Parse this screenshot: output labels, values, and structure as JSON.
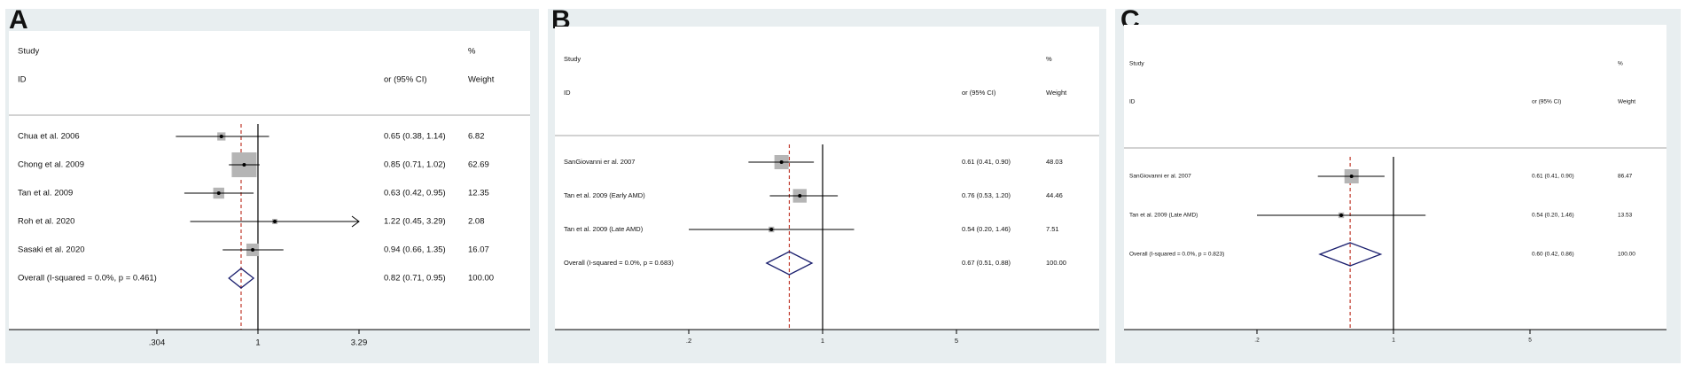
{
  "chart_data": [
    {
      "type": "forest",
      "panel_label": "A",
      "header": {
        "study": "Study",
        "id": "ID",
        "effect": "or (95% CI)",
        "pct": "%",
        "weight": "Weight"
      },
      "reference_line": 1,
      "overall_effect": 0.82,
      "x_ticks": [
        {
          "value": 0.304,
          "label": ".304"
        },
        {
          "value": 1,
          "label": "1"
        },
        {
          "value": 3.29,
          "label": "3.29"
        }
      ],
      "studies": [
        {
          "label": "Chua et al. 2006",
          "or": 0.65,
          "lo": 0.38,
          "hi": 1.14,
          "ci_text": "0.65 (0.38, 1.14)",
          "weight": 6.82,
          "weight_text": "6.82"
        },
        {
          "label": "Chong et al. 2009",
          "or": 0.85,
          "lo": 0.71,
          "hi": 1.02,
          "ci_text": "0.85 (0.71, 1.02)",
          "weight": 62.69,
          "weight_text": "62.69"
        },
        {
          "label": "Tan et al. 2009",
          "or": 0.63,
          "lo": 0.42,
          "hi": 0.95,
          "ci_text": "0.63 (0.42, 0.95)",
          "weight": 12.35,
          "weight_text": "12.35"
        },
        {
          "label": "Roh et al. 2020",
          "or": 1.22,
          "lo": 0.45,
          "hi": 3.29,
          "ci_text": "1.22 (0.45, 3.29)",
          "weight": 2.08,
          "weight_text": "2.08",
          "arrow_right": true
        },
        {
          "label": "Sasaki et al. 2020",
          "or": 0.94,
          "lo": 0.66,
          "hi": 1.35,
          "ci_text": "0.94 (0.66, 1.35)",
          "weight": 16.07,
          "weight_text": "16.07"
        }
      ],
      "overall": {
        "label": "Overall  (I-squared = 0.0%, p = 0.461)",
        "or": 0.82,
        "lo": 0.71,
        "hi": 0.95,
        "ci_text": "0.82 (0.71, 0.95)",
        "weight_text": "100.00"
      }
    },
    {
      "type": "forest",
      "panel_label": "B",
      "header": {
        "study": "Study",
        "id": "ID",
        "effect": "or (95% CI)",
        "pct": "%",
        "weight": "Weight"
      },
      "reference_line": 1,
      "overall_effect": 0.67,
      "x_ticks": [
        {
          "value": 0.2,
          "label": ".2"
        },
        {
          "value": 1,
          "label": "1"
        },
        {
          "value": 5,
          "label": "5"
        }
      ],
      "studies": [
        {
          "label": "SanGiovanni er al. 2007",
          "or": 0.61,
          "lo": 0.41,
          "hi": 0.9,
          "ci_text": "0.61 (0.41, 0.90)",
          "weight": 48.03,
          "weight_text": "48.03"
        },
        {
          "label": "Tan et al. 2009 (Early AMD)",
          "or": 0.76,
          "lo": 0.53,
          "hi": 1.2,
          "ci_text": "0.76 (0.53, 1.20)",
          "weight": 44.46,
          "weight_text": "44.46"
        },
        {
          "label": "Tan et al. 2009 (Late AMD)",
          "or": 0.54,
          "lo": 0.2,
          "hi": 1.46,
          "ci_text": "0.54 (0.20, 1.46)",
          "weight": 7.51,
          "weight_text": "7.51"
        }
      ],
      "overall": {
        "label": "Overall  (I-squared = 0.0%, p = 0.683)",
        "or": 0.67,
        "lo": 0.51,
        "hi": 0.88,
        "ci_text": "0.67 (0.51, 0.88)",
        "weight_text": "100.00"
      }
    },
    {
      "type": "forest",
      "panel_label": "C",
      "header": {
        "study": "Study",
        "id": "ID",
        "effect": "or (95% CI)",
        "pct": "%",
        "weight": "Weight"
      },
      "reference_line": 1,
      "overall_effect": 0.6,
      "x_ticks": [
        {
          "value": 0.2,
          "label": ".2"
        },
        {
          "value": 1,
          "label": "1"
        },
        {
          "value": 5,
          "label": "5"
        }
      ],
      "studies": [
        {
          "label": "SanGiovanni er al. 2007",
          "or": 0.61,
          "lo": 0.41,
          "hi": 0.9,
          "ci_text": "0.61 (0.41, 0.90)",
          "weight": 86.47,
          "weight_text": "86.47"
        },
        {
          "label": "Tan et al. 2009 (Late AMD)",
          "or": 0.54,
          "lo": 0.2,
          "hi": 1.46,
          "ci_text": "0.54 (0.20, 1.46)",
          "weight": 13.53,
          "weight_text": "13.53"
        }
      ],
      "overall": {
        "label": "Overall  (I-squared = 0.0%, p = 0.823)",
        "or": 0.6,
        "lo": 0.42,
        "hi": 0.86,
        "ci_text": "0.60 (0.42, 0.86)",
        "weight_text": "100.00"
      }
    }
  ],
  "colors": {
    "panel_background": "#e8eef0",
    "plot_background": "#ffffff",
    "overall_diamond": "#1a1f6e",
    "overall_dashed_line": "#c0392b",
    "weight_box": "#b5b5b5",
    "ci_line": "#000000"
  }
}
